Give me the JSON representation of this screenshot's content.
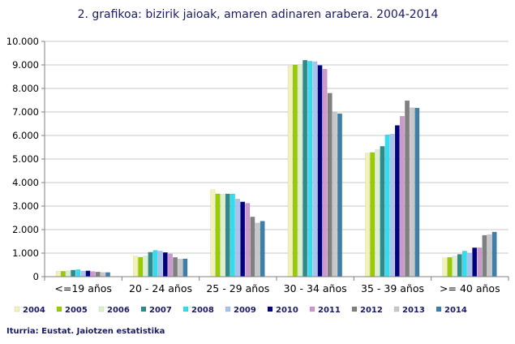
{
  "chart_data": {
    "type": "bar",
    "title": "2. grafikoa: bizirik jaioak, amaren adinaren arabera. 2004-2014",
    "xlabel": "",
    "ylabel": "",
    "ylim": [
      0,
      10000
    ],
    "yticks": [
      0,
      1000,
      2000,
      3000,
      4000,
      5000,
      6000,
      7000,
      8000,
      9000,
      10000
    ],
    "ytick_labels": [
      "0",
      "1.000",
      "2.000",
      "3.000",
      "4.000",
      "5.000",
      "6.000",
      "7.000",
      "8.000",
      "9.000",
      "10.000"
    ],
    "grid": true,
    "legend_position": "bottom",
    "categories": [
      "<=19 años",
      "20 - 24 años",
      "25 - 29 años",
      "30 - 34 años",
      "35 - 39 años",
      ">= 40 años"
    ],
    "series": [
      {
        "name": "2004",
        "color": "#f2f2b8",
        "values": [
          230,
          870,
          3700,
          8950,
          5250,
          800
        ]
      },
      {
        "name": "2005",
        "color": "#99cc00",
        "values": [
          230,
          830,
          3520,
          9000,
          5280,
          820
        ]
      },
      {
        "name": "2006",
        "color": "#dff0d0",
        "values": [
          250,
          880,
          3500,
          9010,
          5400,
          870
        ]
      },
      {
        "name": "2007",
        "color": "#2e8b8b",
        "values": [
          280,
          1040,
          3520,
          9200,
          5540,
          950
        ]
      },
      {
        "name": "2008",
        "color": "#33ddee",
        "values": [
          300,
          1120,
          3520,
          9160,
          6030,
          1090
        ]
      },
      {
        "name": "2009",
        "color": "#a8c4ee",
        "values": [
          240,
          1090,
          3300,
          9140,
          6060,
          1000
        ]
      },
      {
        "name": "2010",
        "color": "#000080",
        "values": [
          250,
          1030,
          3180,
          8980,
          6430,
          1230
        ]
      },
      {
        "name": "2011",
        "color": "#cc99cc",
        "values": [
          220,
          970,
          3120,
          8820,
          6820,
          1230
        ]
      },
      {
        "name": "2012",
        "color": "#808080",
        "values": [
          200,
          820,
          2540,
          7800,
          7480,
          1760
        ]
      },
      {
        "name": "2013",
        "color": "#c8c8c8",
        "values": [
          180,
          750,
          2280,
          7000,
          7180,
          1790
        ]
      },
      {
        "name": "2014",
        "color": "#3d7fa8",
        "values": [
          180,
          760,
          2360,
          6930,
          7170,
          1900
        ]
      }
    ]
  },
  "source_note": "Iturria: Eustat. Jaiotzen estatistika"
}
